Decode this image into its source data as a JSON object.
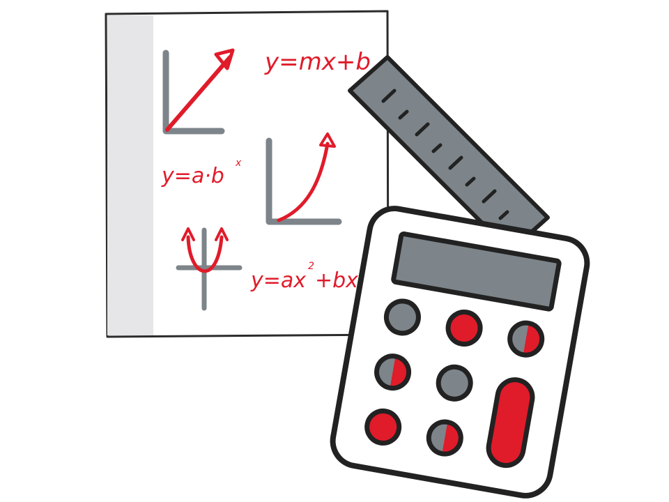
{
  "illustration": {
    "subject": "math-supplies",
    "colors": {
      "outline": "#222222",
      "paper": "#ffffff",
      "paper_margin": "#e6e6e8",
      "gray": "#7d858a",
      "red": "#e01b2a",
      "background": "#ffffff"
    },
    "equations": {
      "linear": "y=mx+b",
      "exponential_base": "y=a·b",
      "exponential_exp": "x",
      "quadratic_a": "y=ax",
      "quadratic_exp": "2",
      "quadratic_b": "+bx+c"
    },
    "icons": [
      "paper-sheet-icon",
      "ruler-icon",
      "calculator-icon"
    ],
    "calculator": {
      "button_fills": [
        "gray",
        "red",
        "half-gray-red",
        "half-gray-red",
        "gray",
        "half-red-gray",
        "red",
        "half-gray-red",
        "tall-red"
      ]
    }
  }
}
